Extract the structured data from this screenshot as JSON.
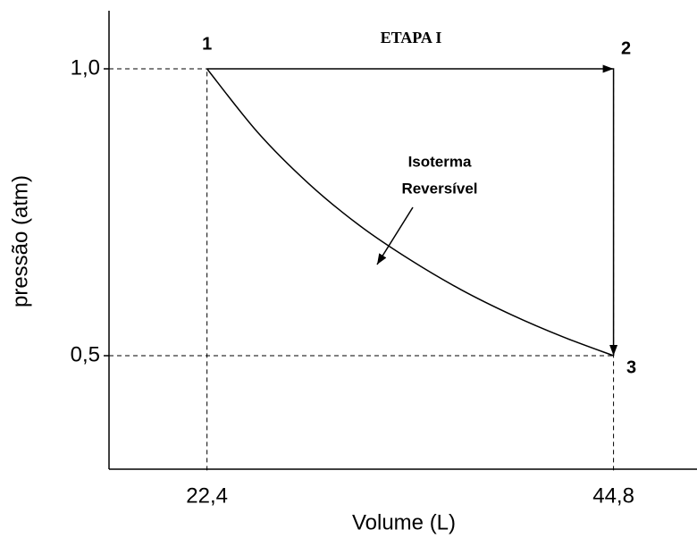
{
  "chart_data": {
    "type": "line",
    "title": "ETAPA I",
    "xlabel": "Volume (L)",
    "ylabel": "pressão (atm)",
    "xlim": [
      17,
      49.4
    ],
    "ylim": [
      0.3,
      1.1
    ],
    "xticks": [
      {
        "value": 22.4,
        "label": "22,4"
      },
      {
        "value": 44.8,
        "label": "44,8"
      }
    ],
    "yticks": [
      {
        "value": 1.0,
        "label": "1,0"
      },
      {
        "value": 0.5,
        "label": "0,5"
      }
    ],
    "series": [
      {
        "x": [
          22.4,
          44.8,
          44.8
        ],
        "values": [
          1.0,
          1.0,
          0.5
        ],
        "color": "#000000",
        "point_labels": [
          "1",
          "2",
          "3"
        ]
      },
      {
        "x": [
          22.4,
          25.2,
          28.0,
          30.8,
          33.6,
          36.4,
          39.2,
          42.0,
          44.8
        ],
        "values": [
          1.0,
          0.889,
          0.8,
          0.727,
          0.667,
          0.615,
          0.571,
          0.533,
          0.5
        ],
        "color": "#000000"
      }
    ],
    "annotation": [
      "Isoterma",
      "Reversível"
    ]
  }
}
